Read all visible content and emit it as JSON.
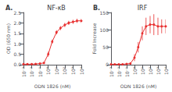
{
  "chart_data": [
    {
      "type": "line",
      "title": "NF-κB",
      "annotation": "A.",
      "xlabel": "ODN 1826 (nM)",
      "ylabel": "OD (650 nm)",
      "x": [
        0.001,
        0.003,
        0.01,
        0.03,
        0.1,
        0.3,
        1,
        3,
        10,
        30,
        100,
        300,
        1000,
        3000,
        10000
      ],
      "values": [
        0.02,
        0.02,
        0.02,
        0.03,
        0.05,
        0.08,
        0.5,
        1.1,
        1.55,
        1.75,
        1.9,
        2.0,
        2.05,
        2.1,
        2.1
      ],
      "errors": [
        0.02,
        0.02,
        0.02,
        0.02,
        0.03,
        0.05,
        0.12,
        0.1,
        0.1,
        0.1,
        0.1,
        0.1,
        0.1,
        0.1,
        0.1
      ],
      "color": "#e83030",
      "marker": "circle",
      "log": "x",
      "xlim": [
        0.001,
        10000
      ],
      "xticks": [
        {
          "value": 0.001,
          "label": "10⁻³"
        },
        {
          "value": 0.01,
          "label": "10⁻²"
        },
        {
          "value": 0.1,
          "label": "10⁻¹"
        },
        {
          "value": 1,
          "label": "10⁰"
        },
        {
          "value": 10,
          "label": "10¹"
        },
        {
          "value": 100,
          "label": "10²"
        },
        {
          "value": 1000,
          "label": "10³"
        },
        {
          "value": 10000,
          "label": "10⁴"
        }
      ],
      "ylim": [
        0,
        2.5
      ],
      "yticks": [
        {
          "value": 0,
          "label": "0.0"
        },
        {
          "value": 0.5,
          "label": "0.5"
        },
        {
          "value": 1,
          "label": "1.0"
        },
        {
          "value": 1.5,
          "label": "1.5"
        },
        {
          "value": 2,
          "label": "2.0"
        },
        {
          "value": 2.5,
          "label": "2.5"
        }
      ],
      "grid": false
    },
    {
      "type": "line",
      "title": "IRF",
      "annotation": "B.",
      "xlabel": "ODN 1826 (nM)",
      "ylabel": "Fold Increase",
      "x": [
        0.001,
        0.003,
        0.01,
        0.03,
        0.1,
        0.3,
        1,
        3,
        10,
        30,
        100,
        300,
        1000,
        3000,
        10000
      ],
      "values": [
        1,
        1,
        1,
        1,
        2,
        3,
        20,
        50,
        90,
        110,
        115,
        115,
        110,
        110,
        110
      ],
      "errors": [
        1,
        1,
        1,
        1,
        2,
        3,
        10,
        15,
        20,
        25,
        25,
        30,
        25,
        20,
        20
      ],
      "color": "#e83030",
      "marker": "circle",
      "log": "x",
      "xlim": [
        0.001,
        10000
      ],
      "xticks": [
        {
          "value": 0.001,
          "label": "10⁻³"
        },
        {
          "value": 0.01,
          "label": "10⁻²"
        },
        {
          "value": 0.1,
          "label": "10⁻¹"
        },
        {
          "value": 1,
          "label": "10⁰"
        },
        {
          "value": 10,
          "label": "10¹"
        },
        {
          "value": 100,
          "label": "10²"
        },
        {
          "value": 1000,
          "label": "10³"
        },
        {
          "value": 10000,
          "label": "10⁴"
        }
      ],
      "ylim": [
        0,
        150
      ],
      "yticks": [
        0,
        50,
        100,
        150
      ],
      "grid": false
    }
  ]
}
